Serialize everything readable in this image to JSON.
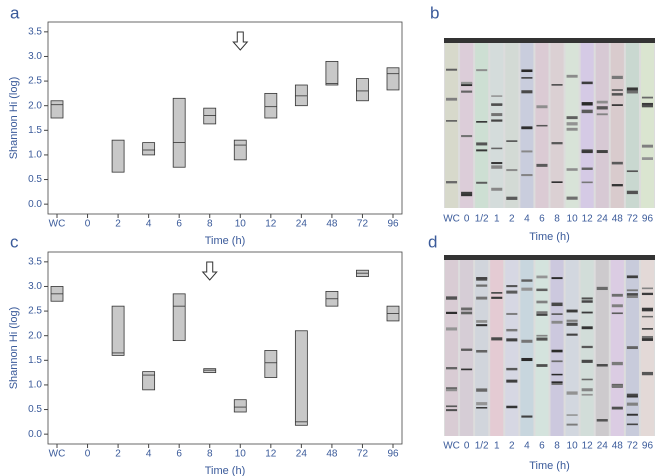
{
  "chart_data": [
    {
      "type": "floating-box",
      "panel": "a",
      "xlabel": "Time (h)",
      "ylabel": "Shannon Hi (log)",
      "categories": [
        "WC",
        "0",
        "2",
        "4",
        "6",
        "8",
        "10",
        "12",
        "24",
        "48",
        "72",
        "96"
      ],
      "low": [
        1.75,
        null,
        0.65,
        1.0,
        0.75,
        1.63,
        0.9,
        1.75,
        2.0,
        2.42,
        2.1,
        2.32
      ],
      "median": [
        2.02,
        null,
        null,
        1.1,
        1.25,
        1.8,
        1.2,
        1.98,
        2.2,
        2.45,
        2.3,
        2.65
      ],
      "high": [
        2.1,
        null,
        1.3,
        1.25,
        2.15,
        1.95,
        1.3,
        2.25,
        2.42,
        2.9,
        2.55,
        2.77
      ],
      "color": "#c8c8c8",
      "arrow_category": "10",
      "ylim": [
        -0.2,
        3.7
      ],
      "yticks": [
        {
          "value": 0,
          "label": "0.0"
        },
        {
          "value": 0.5,
          "label": "0.5"
        },
        {
          "value": 1,
          "label": "1.0"
        },
        {
          "value": 1.5,
          "label": "1.5"
        },
        {
          "value": 2,
          "label": "2.0"
        },
        {
          "value": 2.5,
          "label": "2.5"
        },
        {
          "value": 3,
          "label": "3.0"
        },
        {
          "value": 3.5,
          "label": "3.5"
        }
      ]
    },
    {
      "type": "floating-box",
      "panel": "c",
      "xlabel": "Time (h)",
      "ylabel": "Shannon Hi (log)",
      "categories": [
        "WC",
        "0",
        "2",
        "4",
        "6",
        "8",
        "10",
        "12",
        "24",
        "48",
        "72",
        "96"
      ],
      "low": [
        2.7,
        null,
        1.6,
        0.9,
        1.9,
        1.25,
        0.45,
        1.15,
        0.18,
        2.6,
        3.2,
        2.3
      ],
      "median": [
        2.85,
        null,
        1.65,
        1.2,
        2.6,
        1.3,
        0.55,
        1.45,
        0.25,
        2.75,
        3.27,
        2.45
      ],
      "high": [
        3.0,
        null,
        2.6,
        1.27,
        2.85,
        1.33,
        0.7,
        1.7,
        2.1,
        2.9,
        3.33,
        2.6
      ],
      "color": "#c8c8c8",
      "arrow_category": "8",
      "ylim": [
        -0.2,
        3.7
      ],
      "yticks": [
        {
          "value": 0,
          "label": "0.0"
        },
        {
          "value": 0.5,
          "label": "0.5"
        },
        {
          "value": 1,
          "label": "1.0"
        },
        {
          "value": 1.5,
          "label": "1.5"
        },
        {
          "value": 2,
          "label": "2.0"
        },
        {
          "value": 2.5,
          "label": "2.5"
        },
        {
          "value": 3,
          "label": "3.0"
        },
        {
          "value": 3.5,
          "label": "3.5"
        }
      ]
    }
  ],
  "gels": [
    {
      "panel": "b",
      "xlabel": "Time (h)",
      "lanes": [
        "WC",
        "0",
        "1/2",
        "1",
        "2",
        "4",
        "6",
        "8",
        "10",
        "12",
        "24",
        "48",
        "72",
        "96"
      ]
    },
    {
      "panel": "d",
      "xlabel": "Time (h)",
      "lanes": [
        "WC",
        "0",
        "1/2",
        "1",
        "2",
        "4",
        "6",
        "8",
        "10",
        "12",
        "24",
        "48",
        "72",
        "96"
      ]
    }
  ]
}
